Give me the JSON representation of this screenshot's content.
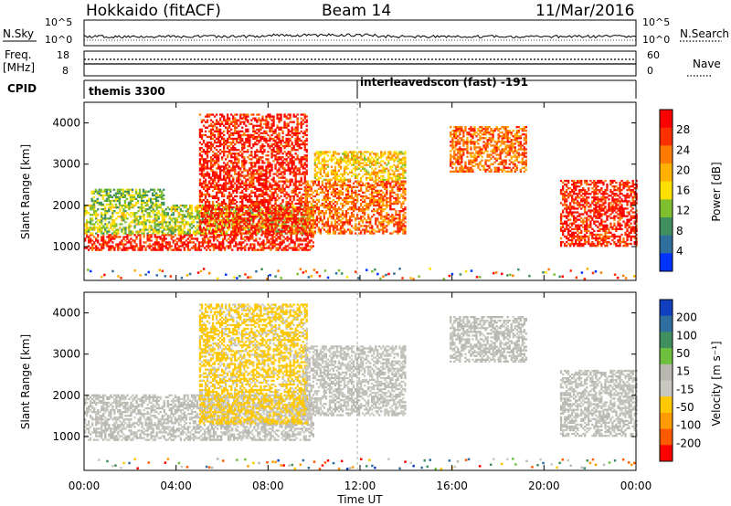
{
  "header": {
    "station": "Hokkaido (fitACF)",
    "beam": "Beam 14",
    "date": "11/Mar/2016"
  },
  "labels": {
    "nsky": "N.Sky",
    "nsearch": "N.Search",
    "freq_line1": "Freq.",
    "freq_line2": "[MHz]",
    "nave": "Nave",
    "cpid": "CPID",
    "cpid_first": "themis 3300",
    "cpid_second": "interleavedscon (fast) -191",
    "noise_top_left": "10^5",
    "noise_bottom_left": "10^0",
    "noise_top_right": "10^5",
    "noise_bottom_right": "10^0",
    "freq_left_a": "18",
    "freq_left_b": "8",
    "nave_right_a": "60",
    "nave_right_b": "0"
  },
  "colors": {
    "power": [
      "#0033ff",
      "#2f6f9e",
      "#3f8f5f",
      "#7fbf2f",
      "#ffe000",
      "#ffb000",
      "#ff7a00",
      "#ff3000",
      "#ff0000"
    ],
    "velocity": [
      "#ff0000",
      "#ff5a00",
      "#ff9a00",
      "#ffc800",
      "#c8c8c0",
      "#b8b8b0",
      "#6fbf3f",
      "#3f8f5f",
      "#2f6fa0",
      "#1040c0"
    ]
  },
  "chart_data": [
    {
      "type": "heatmap",
      "panel": "power",
      "xlabel": "Time UT",
      "ylabel": "Slant Range [km]",
      "x_ticks": [
        "00:00",
        "04:00",
        "08:00",
        "12:00",
        "16:00",
        "20:00",
        "00:00"
      ],
      "y_ticks": [
        1000,
        2000,
        3000,
        4000
      ],
      "xlim_hours": [
        0,
        24
      ],
      "ylim_km": [
        180,
        4500
      ],
      "colorbar": {
        "label": "Power [dB]",
        "ticks": [
          4,
          8,
          12,
          16,
          20,
          24,
          28
        ],
        "range": [
          0,
          32
        ]
      },
      "echo_bands": [
        {
          "start_h": 0.0,
          "end_h": 10.0,
          "range_km": [
            900,
            1300
          ],
          "power_db": 28
        },
        {
          "start_h": 0.0,
          "end_h": 10.0,
          "range_km": [
            1300,
            2000
          ],
          "power_db": 14
        },
        {
          "start_h": 0.3,
          "end_h": 3.5,
          "range_km": [
            2000,
            2400
          ],
          "power_db": 12
        },
        {
          "start_h": 5.0,
          "end_h": 9.7,
          "range_km": [
            1300,
            4200
          ],
          "power_db": 28
        },
        {
          "start_h": 9.6,
          "end_h": 14.0,
          "range_km": [
            1300,
            2600
          ],
          "power_db": 24
        },
        {
          "start_h": 10.0,
          "end_h": 14.0,
          "range_km": [
            2600,
            3300
          ],
          "power_db": 18
        },
        {
          "start_h": 15.9,
          "end_h": 19.2,
          "range_km": [
            2800,
            3900
          ],
          "power_db": 24
        },
        {
          "start_h": 20.7,
          "end_h": 24.0,
          "range_km": [
            1000,
            2600
          ],
          "power_db": 28
        }
      ]
    },
    {
      "type": "heatmap",
      "panel": "velocity",
      "xlabel": "Time UT",
      "ylabel": "Slant Range [km]",
      "x_ticks": [
        "00:00",
        "04:00",
        "08:00",
        "12:00",
        "16:00",
        "20:00",
        "00:00"
      ],
      "y_ticks": [
        1000,
        2000,
        3000,
        4000
      ],
      "xlim_hours": [
        0,
        24
      ],
      "ylim_km": [
        180,
        4500
      ],
      "colorbar": {
        "label": "Velocity [m s⁻¹]",
        "ticks": [
          200,
          100,
          50,
          15,
          -15,
          -50,
          -100,
          -200
        ],
        "range": [
          -250,
          250
        ]
      },
      "echo_bands": [
        {
          "start_h": 0.0,
          "end_h": 10.0,
          "range_km": [
            900,
            2000
          ],
          "velocity_ms": 0
        },
        {
          "start_h": 5.0,
          "end_h": 9.7,
          "range_km": [
            1300,
            4200
          ],
          "velocity_ms": -60
        },
        {
          "start_h": 9.6,
          "end_h": 14.0,
          "range_km": [
            1500,
            3200
          ],
          "velocity_ms": -5
        },
        {
          "start_h": 15.9,
          "end_h": 19.2,
          "range_km": [
            2800,
            3900
          ],
          "velocity_ms": 5
        },
        {
          "start_h": 20.7,
          "end_h": 24.0,
          "range_km": [
            1000,
            2600
          ],
          "velocity_ms": 0
        }
      ]
    }
  ]
}
